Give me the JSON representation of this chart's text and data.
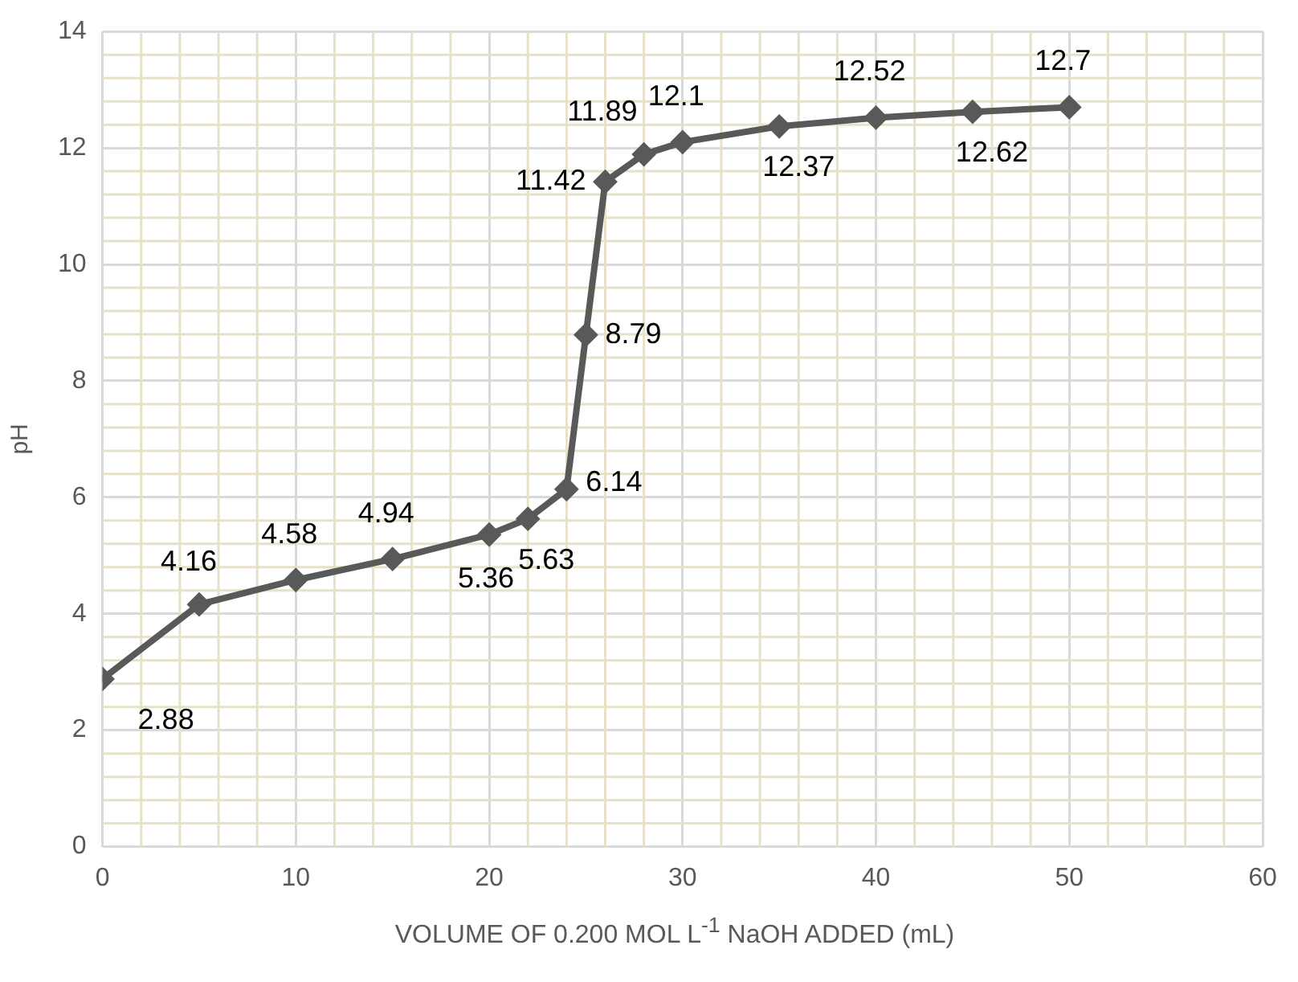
{
  "chart_data": {
    "type": "line",
    "xlabel": "VOLUME OF 0.200 MOL L$^{-1}$ NaOH ADDED (mL)",
    "ylabel": "pH",
    "x": [
      0,
      5,
      10,
      15,
      20,
      22,
      24,
      25,
      26,
      28,
      30,
      35,
      40,
      45,
      50
    ],
    "series": [
      {
        "color": "#595959",
        "values": [
          2.88,
          4.16,
          4.58,
          4.94,
          5.36,
          5.63,
          6.14,
          8.79,
          11.42,
          11.89,
          12.1,
          12.37,
          12.52,
          12.62,
          12.7
        ]
      }
    ],
    "xlim": [
      0,
      60
    ],
    "xticks": [
      0,
      10,
      20,
      30,
      40,
      50,
      60
    ],
    "ylim": [
      0,
      14
    ],
    "yticks": [
      0,
      2,
      4,
      6,
      8,
      10,
      12,
      14
    ],
    "grid": true,
    "legend": false,
    "marker": "diamond",
    "line_style": "solid",
    "data_labels": true
  }
}
